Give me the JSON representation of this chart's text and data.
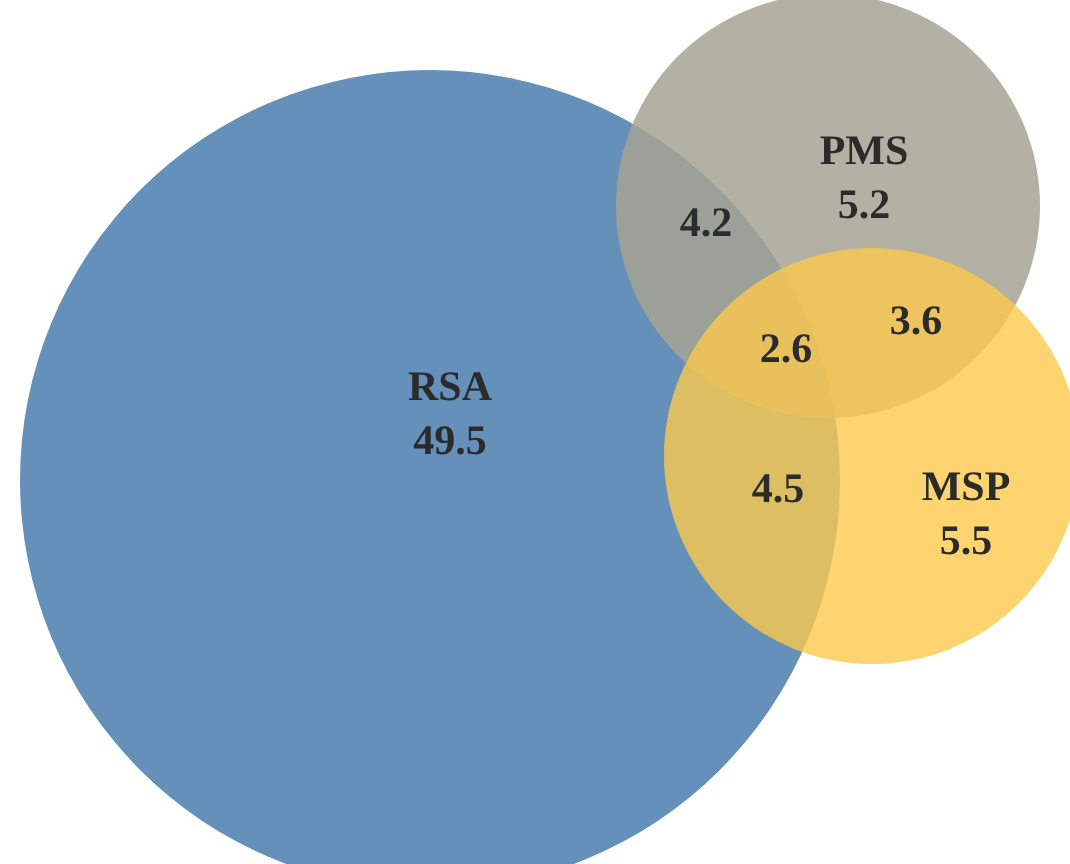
{
  "chart_data": {
    "type": "other",
    "categories": [
      "RSA",
      "PMS",
      "MSP"
    ],
    "values": [
      49.5,
      5.2,
      5.5
    ],
    "colors": [
      "#6590b9",
      "#a5a393",
      "#fdc94c"
    ],
    "annotations": [
      "4.2",
      "3.6",
      "4.5",
      "2.6"
    ],
    "data_labels": true
  }
}
